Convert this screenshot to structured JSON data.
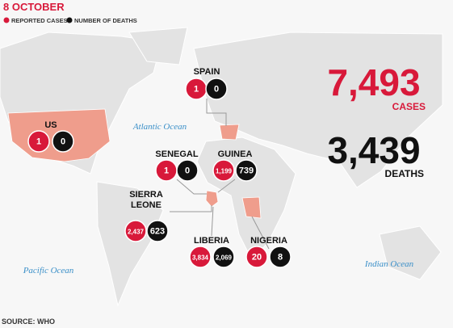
{
  "header": {
    "date": "8 OCTOBER"
  },
  "legend": [
    {
      "label": "REPORTED CASES",
      "color": "#d8193a"
    },
    {
      "label": "NUMBER OF DEATHS",
      "color": "#111111"
    }
  ],
  "countries": [
    {
      "name_lines": [
        "SPAIN"
      ],
      "cases": "1",
      "deaths": "0"
    },
    {
      "name_lines": [
        "US"
      ],
      "cases": "1",
      "deaths": "0"
    },
    {
      "name_lines": [
        "SENEGAL"
      ],
      "cases": "1",
      "deaths": "0"
    },
    {
      "name_lines": [
        "GUINEA"
      ],
      "cases": "1,199",
      "deaths": "739"
    },
    {
      "name_lines": [
        "SIERRA",
        "LEONE"
      ],
      "cases": "2,437",
      "deaths": "623"
    },
    {
      "name_lines": [
        "LIBERIA"
      ],
      "cases": "3,834",
      "deaths": "2,069"
    },
    {
      "name_lines": [
        "NIGERIA"
      ],
      "cases": "20",
      "deaths": "8"
    }
  ],
  "totals": {
    "cases": "7,493",
    "cases_label": "CASES",
    "deaths": "3,439",
    "deaths_label": "DEATHS"
  },
  "oceans": [
    "Atlantic Ocean",
    "Pacific Ocean",
    "Indian Ocean"
  ],
  "source": "SOURCE: WHO"
}
